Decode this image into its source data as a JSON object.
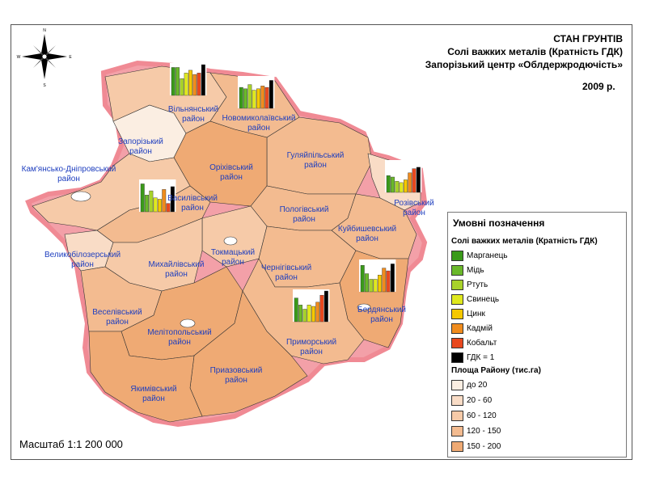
{
  "title": {
    "line1": "СТАН ГРУНТІВ",
    "line2": "Солі важких металів (Кратність  ГДК)",
    "line3": "Запорізький центр «Облдержродючість»",
    "year": "2009 р."
  },
  "compass": {
    "n": "N",
    "s": "S",
    "w": "W",
    "e": "E"
  },
  "scale": "Масштаб 1:1 200 000",
  "legend": {
    "title": "Умовні позначення",
    "metals_title": "Солі важких металів (Кратність  ГДК)",
    "metals": [
      {
        "label": "Марганець",
        "color": "#3a9a1a"
      },
      {
        "label": "Мідь",
        "color": "#6ab82a"
      },
      {
        "label": "Ртуть",
        "color": "#a8d22a"
      },
      {
        "label": "Свинець",
        "color": "#dfe81e"
      },
      {
        "label": "Цинк",
        "color": "#f5c800"
      },
      {
        "label": "Кадмій",
        "color": "#f08c1e"
      },
      {
        "label": "Кобальт",
        "color": "#e8481e"
      },
      {
        "label": "ГДК = 1",
        "color": "#000000"
      }
    ],
    "area_title": "Площа Району (тис.га)",
    "areas": [
      {
        "label": "до 20",
        "color": "#fbeee2"
      },
      {
        "label": "20 - 60",
        "color": "#f9dcc6"
      },
      {
        "label": "60 - 120",
        "color": "#f6caa8"
      },
      {
        "label": "120 - 150",
        "color": "#f3bb90"
      },
      {
        "label": "150 - 200",
        "color": "#efaa74"
      }
    ]
  },
  "districts": [
    {
      "name1": "Вільнянський",
      "name2": "район"
    },
    {
      "name1": "Новомиколаївський",
      "name2": "район"
    },
    {
      "name1": "Запорізький",
      "name2": "район"
    },
    {
      "name1": "Гуляйпільський",
      "name2": "район"
    },
    {
      "name1": "Оріхівський",
      "name2": "район"
    },
    {
      "name1": "Кам'янсько-Дніпровський",
      "name2": "район"
    },
    {
      "name1": "Василівський",
      "name2": "район"
    },
    {
      "name1": "Розівський",
      "name2": "район"
    },
    {
      "name1": "Пологівський",
      "name2": "район"
    },
    {
      "name1": "Куйбишевський",
      "name2": "район"
    },
    {
      "name1": "Великобілозерський",
      "name2": "район"
    },
    {
      "name1": "Токмацький",
      "name2": "район"
    },
    {
      "name1": "Михайлівський",
      "name2": "район"
    },
    {
      "name1": "Чернігівський",
      "name2": "район"
    },
    {
      "name1": "Бердянський",
      "name2": "район"
    },
    {
      "name1": "Веселівський",
      "name2": "район"
    },
    {
      "name1": "Мелітопольський",
      "name2": "район"
    },
    {
      "name1": "Приморський",
      "name2": "район"
    },
    {
      "name1": "Приазовський",
      "name2": "район"
    },
    {
      "name1": "Якимівський",
      "name2": "район"
    }
  ],
  "chart_data": [
    {
      "type": "bar",
      "district": "Вільнянський",
      "categories": [
        "Марганець",
        "Мідь",
        "Ртуть",
        "Свинець",
        "Цинк",
        "Кадмій",
        "Кобальт",
        "ГДК = 1"
      ],
      "values": [
        1.0,
        1.0,
        0.6,
        0.8,
        0.9,
        0.75,
        0.8,
        1.1
      ]
    },
    {
      "type": "bar",
      "district": "Новомиколаївський",
      "categories": [
        "Марганець",
        "Мідь",
        "Ртуть",
        "Свинець",
        "Цинк",
        "Кадмій",
        "Кобальт",
        "ГДК = 1"
      ],
      "values": [
        0.75,
        0.7,
        0.85,
        0.65,
        0.7,
        0.8,
        0.75,
        1.0
      ]
    },
    {
      "type": "bar",
      "district": "Розівський",
      "categories": [
        "Марганець",
        "Мідь",
        "Ртуть",
        "Свинець",
        "Цинк",
        "Кадмій",
        "Кобальт",
        "ГДК = 1"
      ],
      "values": [
        0.6,
        0.55,
        0.4,
        0.35,
        0.45,
        0.7,
        0.85,
        0.9
      ]
    },
    {
      "type": "bar",
      "district": "Василівський",
      "categories": [
        "Марганець",
        "Мідь",
        "Ртуть",
        "Свинець",
        "Цинк",
        "Кадмій",
        "Кобальт",
        "ГДК = 1"
      ],
      "values": [
        1.0,
        0.6,
        0.75,
        0.5,
        0.45,
        0.8,
        0.3,
        0.9
      ]
    },
    {
      "type": "bar",
      "district": "Бердянський",
      "categories": [
        "Марганець",
        "Мідь",
        "Ртуть",
        "Свинець",
        "Цинк",
        "Кадмій",
        "Кобальт",
        "ГДК = 1"
      ],
      "values": [
        0.95,
        0.65,
        0.45,
        0.45,
        0.6,
        0.85,
        0.75,
        1.0
      ]
    },
    {
      "type": "bar",
      "district": "Приморський",
      "categories": [
        "Марганець",
        "Мідь",
        "Ртуть",
        "Свинець",
        "Цинк",
        "Кадмій",
        "Кобальт",
        "ГДК = 1"
      ],
      "values": [
        0.85,
        0.6,
        0.45,
        0.6,
        0.55,
        0.7,
        0.95,
        1.1
      ]
    }
  ]
}
